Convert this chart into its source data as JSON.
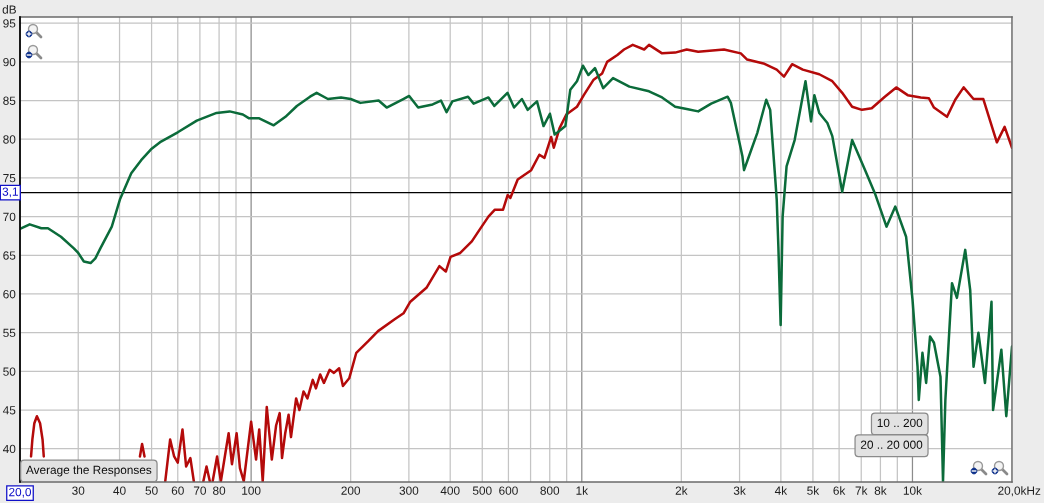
{
  "chart_data": {
    "type": "line",
    "ylabel": "dB",
    "xlabel": "Hz",
    "log": "x",
    "xlim": [
      20,
      20000
    ],
    "ylim": [
      35.7,
      95.8
    ],
    "xticks": [
      30,
      40,
      50,
      60,
      70,
      80,
      {
        "value": 90,
        "label": null
      },
      100,
      200,
      300,
      400,
      500,
      600,
      {
        "value": 700,
        "label": null
      },
      800,
      {
        "value": 900,
        "label": null
      },
      {
        "value": 1000,
        "label": "1k"
      },
      {
        "value": 2000,
        "label": "2k"
      },
      {
        "value": 3000,
        "label": "3k"
      },
      {
        "value": 4000,
        "label": "4k"
      },
      {
        "value": 5000,
        "label": "5k"
      },
      {
        "value": 6000,
        "label": "6k"
      },
      {
        "value": 7000,
        "label": "7k"
      },
      {
        "value": 8000,
        "label": "8k"
      },
      {
        "value": 9000,
        "label": null
      },
      {
        "value": 10000,
        "label": "10k"
      },
      {
        "value": 20000,
        "label": "20,0k"
      }
    ],
    "yticks": [
      40,
      45,
      50,
      55,
      60,
      65,
      70,
      75,
      80,
      85,
      90,
      95
    ],
    "grid": true,
    "line_style": "solid",
    "ref_lines": [
      {
        "axis": "y",
        "value": 73.1,
        "color": "#000000"
      },
      {
        "axis": "x",
        "value": 20,
        "label": "20,0",
        "color": "#000000"
      }
    ],
    "annotations": [
      "3,1",
      "Average the Responses",
      "10 .. 200",
      "20 .. 20 000"
    ],
    "series": [
      {
        "color": "#b40a0a",
        "x": [
          21.6,
          21.8,
          22.1,
          22.5,
          23.0,
          23.4,
          23.6,
          35,
          46.1,
          46.8,
          47.6,
          51,
          55.0,
          56.9,
          58.5,
          60.0,
          62.0,
          63.6,
          65.5,
          67.1,
          69,
          71.7,
          73.3,
          75.0,
          75.8,
          76.5,
          78.9,
          81.0,
          84.0,
          85.5,
          87.5,
          90.4,
          92.5,
          95.0,
          100,
          103.5,
          105.8,
          108.4,
          111.5,
          115.5,
          119,
          122,
          124,
          126.8,
          129.8,
          132,
          136.8,
          140,
          144,
          148,
          153.6,
          157,
          161.8,
          166,
          172.8,
          178,
          184.6,
          189.5,
          198,
          208,
          226,
          242,
          271,
          289,
          303,
          339,
          371,
          388,
          401,
          429,
          465,
          487,
          522,
          546,
          578,
          597,
          608,
          640,
          703,
          744,
          771,
          808,
          823,
          856,
          898,
          967,
          1014,
          1086,
          1152,
          1193,
          1281,
          1342,
          1426,
          1544,
          1597,
          1749,
          1916,
          2076,
          2249,
          2692,
          3026,
          3163,
          3543,
          3886,
          4088,
          4325,
          4660,
          5225,
          5723,
          6131,
          6570,
          7036,
          7531,
          8250,
          8932,
          9673,
          10590,
          11210,
          11616,
          12720,
          13470,
          14280,
          15300,
          16380,
          18000,
          19000,
          20000
        ],
        "values": [
          39.0,
          41.2,
          43.3,
          44.2,
          43.3,
          41.2,
          39.0,
          null,
          39.0,
          40.6,
          39.0,
          null,
          35.8,
          41.2,
          39.0,
          38.2,
          42.5,
          37.7,
          38.8,
          35.8,
          null,
          35.8,
          37.7,
          35.8,
          null,
          35.8,
          39.0,
          35.8,
          40.0,
          42.0,
          38.0,
          42.0,
          37.5,
          35.8,
          43.5,
          38.6,
          42.5,
          35.8,
          45.4,
          38.6,
          43.0,
          44.6,
          38.8,
          42.0,
          44.4,
          41.5,
          46.5,
          45.0,
          47.4,
          46.5,
          48.9,
          47.8,
          49.6,
          48.5,
          50.2,
          49.8,
          50.4,
          48.1,
          49.1,
          52.4,
          53.9,
          55.2,
          56.7,
          57.5,
          59.0,
          60.8,
          63.6,
          62.9,
          64.8,
          65.3,
          66.8,
          68.1,
          70.0,
          70.9,
          70.9,
          72.8,
          72.4,
          74.8,
          76.0,
          78.0,
          77.6,
          80.3,
          78.9,
          81.4,
          83.2,
          84.2,
          85.7,
          87.7,
          88.5,
          90.0,
          90.9,
          91.6,
          92.2,
          91.6,
          92.2,
          91.1,
          91.2,
          91.6,
          91.3,
          91.6,
          91.1,
          90.3,
          89.8,
          89.0,
          88.1,
          89.7,
          89.0,
          88.4,
          87.5,
          86.0,
          84.2,
          83.8,
          84.0,
          85.5,
          86.7,
          85.7,
          85.4,
          85.3,
          84.1,
          82.9,
          85.1,
          86.7,
          85.2,
          85.2,
          79.6,
          81.6,
          78.9
        ]
      },
      {
        "color": "#0b6b3a",
        "x": [
          20,
          21.4,
          23.2,
          24.3,
          26.6,
          29.1,
          30,
          31.2,
          32.7,
          33.8,
          35.0,
          37.9,
          40.1,
          43.4,
          46.5,
          49.8,
          53.4,
          60,
          68.5,
          78.6,
          86.1,
          94.4,
          98.6,
          105.8,
          117,
          127,
          137.5,
          150.7,
          157.8,
          170.7,
          187,
          200,
          214,
          243,
          257,
          288.5,
          300.6,
          320,
          354,
          375,
          390,
          406,
          453,
          471,
          522,
          544,
          596,
          624,
          659,
          686,
          732,
          766,
          801,
          828,
          862,
          892,
          923,
          967,
          1008,
          1047,
          1096,
          1161,
          1243,
          1393,
          1597,
          1749,
          1916,
          2076,
          2249,
          2462,
          2760,
          2824,
          2955,
          3060,
          3095,
          3203,
          3393,
          3612,
          3713,
          3842,
          3886,
          3931,
          3994,
          4049,
          4162,
          4403,
          4748,
          4935,
          5050,
          5225,
          5530,
          5723,
          6131,
          6570,
          7192,
          7701,
          8346,
          8874,
          9567,
          10007,
          10360,
          10450,
          10720,
          11000,
          11300,
          11616,
          12155,
          12370,
          12575,
          13170,
          13630,
          14440,
          14950,
          15300,
          15830,
          16570,
          17340,
          17530,
          18570,
          19220,
          20000
        ],
        "values": [
          68.4,
          69.0,
          68.5,
          68.5,
          67.4,
          65.9,
          65.3,
          64.2,
          64.0,
          64.6,
          65.9,
          68.7,
          72.2,
          75.6,
          77.3,
          78.7,
          79.7,
          80.9,
          82.4,
          83.4,
          83.6,
          83.2,
          82.7,
          82.7,
          81.8,
          82.9,
          84.3,
          85.5,
          86.0,
          85.2,
          85.4,
          85.2,
          84.7,
          85.0,
          84.1,
          85.2,
          85.6,
          84.1,
          84.5,
          85.0,
          83.5,
          84.9,
          85.5,
          84.6,
          85.4,
          84.3,
          86.0,
          84.1,
          85.2,
          83.8,
          84.9,
          81.7,
          83.3,
          80.6,
          81.2,
          81.7,
          86.4,
          87.5,
          89.5,
          88.3,
          89.2,
          86.6,
          87.9,
          86.8,
          86.2,
          85.4,
          84.2,
          83.9,
          83.6,
          84.6,
          85.5,
          84.7,
          80.8,
          77.8,
          76.0,
          77.8,
          80.8,
          85.1,
          83.8,
          75.2,
          72.2,
          66.1,
          56.0,
          70.0,
          76.5,
          79.9,
          87.5,
          82.3,
          85.7,
          83.4,
          82.1,
          80.4,
          73.2,
          79.9,
          76.0,
          73.0,
          68.7,
          71.3,
          67.4,
          59.2,
          50.6,
          46.3,
          52.4,
          48.5,
          54.5,
          53.7,
          49.3,
          35.8,
          46.3,
          61.4,
          59.5,
          65.7,
          60.5,
          50.6,
          55.0,
          48.5,
          59.0,
          45.0,
          52.8,
          44.2,
          53.2
        ]
      }
    ]
  }
}
